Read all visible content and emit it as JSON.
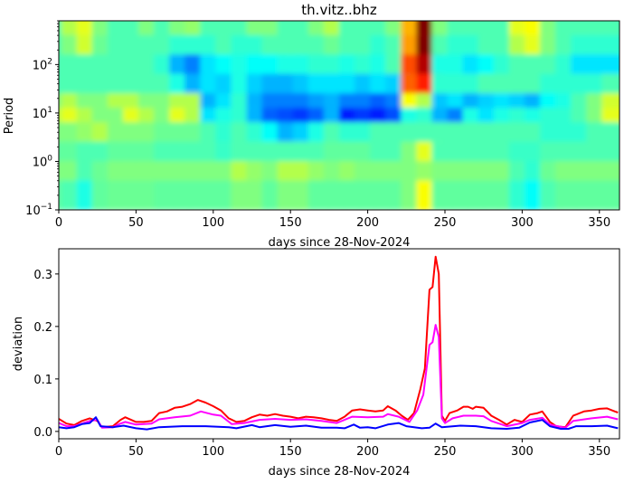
{
  "chart_data": [
    {
      "type": "heatmap",
      "title": "th.vitz..bhz",
      "xlabel": "days since 28-Nov-2024",
      "ylabel": "Period",
      "xlim": [
        0,
        363
      ],
      "ylim": [
        0.1,
        800
      ],
      "yscale": "log",
      "xticks": [
        "0",
        "50",
        "100",
        "150",
        "200",
        "250",
        "300",
        "350"
      ],
      "xtick_values": [
        0,
        50,
        100,
        150,
        200,
        250,
        300,
        350
      ],
      "yticks": [
        {
          "base": "10",
          "exp": "−1",
          "value": 0.1
        },
        {
          "base": "10",
          "exp": "0",
          "value": 1
        },
        {
          "base": "10",
          "exp": "1",
          "value": 10
        },
        {
          "base": "10",
          "exp": "2",
          "value": 100
        }
      ],
      "colormap": "jet",
      "x_bin_days": [
        0,
        10,
        20,
        30,
        40,
        50,
        60,
        70,
        80,
        90,
        100,
        110,
        120,
        130,
        140,
        150,
        160,
        170,
        180,
        190,
        200,
        210,
        220,
        230,
        240,
        250,
        260,
        270,
        280,
        290,
        300,
        310,
        320,
        330,
        340,
        350,
        360
      ],
      "log10_period_rows_top_to_bottom": [
        2.7,
        2.3,
        1.9,
        1.5,
        1.1,
        0.8,
        0.5,
        0.1,
        -0.3,
        -0.7
      ],
      "values": [
        [
          0.45,
          0.55,
          0.6,
          0.5,
          0.45,
          0.45,
          0.5,
          0.45,
          0.5,
          0.52,
          0.45,
          0.45,
          0.45,
          0.5,
          0.5,
          0.45,
          0.45,
          0.5,
          0.55,
          0.45,
          0.45,
          0.45,
          0.5,
          0.7,
          1.0,
          0.5,
          0.45,
          0.45,
          0.45,
          0.45,
          0.6,
          0.62,
          0.5,
          0.45,
          0.45,
          0.45,
          0.45
        ],
        [
          0.45,
          0.5,
          0.58,
          0.48,
          0.45,
          0.45,
          0.45,
          0.45,
          0.42,
          0.42,
          0.42,
          0.45,
          0.42,
          0.42,
          0.45,
          0.45,
          0.45,
          0.45,
          0.48,
          0.45,
          0.45,
          0.42,
          0.45,
          0.72,
          1.0,
          0.45,
          0.42,
          0.42,
          0.45,
          0.45,
          0.55,
          0.6,
          0.5,
          0.45,
          0.42,
          0.42,
          0.42
        ],
        [
          0.45,
          0.45,
          0.45,
          0.45,
          0.45,
          0.45,
          0.45,
          0.42,
          0.3,
          0.25,
          0.35,
          0.38,
          0.4,
          0.38,
          0.38,
          0.4,
          0.4,
          0.42,
          0.42,
          0.4,
          0.42,
          0.4,
          0.45,
          0.8,
          0.95,
          0.4,
          0.4,
          0.35,
          0.38,
          0.42,
          0.45,
          0.45,
          0.45,
          0.42,
          0.35,
          0.35,
          0.35
        ],
        [
          0.45,
          0.45,
          0.45,
          0.45,
          0.45,
          0.45,
          0.45,
          0.45,
          0.4,
          0.3,
          0.35,
          0.33,
          0.4,
          0.33,
          0.3,
          0.3,
          0.32,
          0.35,
          0.35,
          0.35,
          0.32,
          0.35,
          0.33,
          0.78,
          0.85,
          0.42,
          0.42,
          0.42,
          0.45,
          0.45,
          0.45,
          0.45,
          0.42,
          0.42,
          0.42,
          0.42,
          0.45
        ],
        [
          0.5,
          0.55,
          0.5,
          0.5,
          0.55,
          0.55,
          0.5,
          0.5,
          0.55,
          0.55,
          0.3,
          0.35,
          0.42,
          0.3,
          0.25,
          0.25,
          0.25,
          0.28,
          0.3,
          0.25,
          0.25,
          0.22,
          0.25,
          0.62,
          0.55,
          0.32,
          0.35,
          0.3,
          0.33,
          0.35,
          0.33,
          0.3,
          0.38,
          0.4,
          0.45,
          0.5,
          0.58
        ],
        [
          0.55,
          0.6,
          0.55,
          0.5,
          0.5,
          0.6,
          0.55,
          0.5,
          0.6,
          0.55,
          0.35,
          0.4,
          0.42,
          0.3,
          0.22,
          0.2,
          0.18,
          0.22,
          0.3,
          0.15,
          0.18,
          0.15,
          0.2,
          0.4,
          0.42,
          0.3,
          0.25,
          0.4,
          0.35,
          0.4,
          0.42,
          0.4,
          0.42,
          0.42,
          0.45,
          0.5,
          0.6
        ],
        [
          0.5,
          0.5,
          0.52,
          0.55,
          0.5,
          0.5,
          0.5,
          0.48,
          0.48,
          0.48,
          0.45,
          0.42,
          0.45,
          0.42,
          0.38,
          0.3,
          0.33,
          0.4,
          0.45,
          0.42,
          0.42,
          0.45,
          0.45,
          0.45,
          0.45,
          0.45,
          0.45,
          0.45,
          0.45,
          0.45,
          0.45,
          0.45,
          0.42,
          0.42,
          0.42,
          0.45,
          0.45
        ],
        [
          0.47,
          0.47,
          0.45,
          0.45,
          0.47,
          0.47,
          0.47,
          0.45,
          0.45,
          0.45,
          0.45,
          0.43,
          0.45,
          0.45,
          0.45,
          0.45,
          0.45,
          0.45,
          0.47,
          0.47,
          0.47,
          0.45,
          0.45,
          0.5,
          0.6,
          0.45,
          0.45,
          0.45,
          0.45,
          0.45,
          0.43,
          0.43,
          0.45,
          0.45,
          0.45,
          0.45,
          0.45
        ],
        [
          0.5,
          0.5,
          0.45,
          0.48,
          0.5,
          0.5,
          0.5,
          0.5,
          0.5,
          0.5,
          0.5,
          0.5,
          0.55,
          0.52,
          0.5,
          0.55,
          0.55,
          0.52,
          0.5,
          0.52,
          0.5,
          0.5,
          0.5,
          0.5,
          0.52,
          0.5,
          0.5,
          0.5,
          0.5,
          0.5,
          0.45,
          0.42,
          0.48,
          0.5,
          0.5,
          0.5,
          0.5
        ],
        [
          0.47,
          0.45,
          0.4,
          0.47,
          0.48,
          0.48,
          0.48,
          0.47,
          0.47,
          0.47,
          0.47,
          0.47,
          0.5,
          0.5,
          0.47,
          0.5,
          0.5,
          0.47,
          0.47,
          0.47,
          0.47,
          0.47,
          0.47,
          0.5,
          0.62,
          0.47,
          0.47,
          0.47,
          0.47,
          0.47,
          0.42,
          0.38,
          0.45,
          0.47,
          0.47,
          0.47,
          0.47
        ]
      ]
    },
    {
      "type": "line",
      "xlabel": "days since 28-Nov-2024",
      "ylabel": "deviation",
      "xlim": [
        0,
        363
      ],
      "ylim": [
        -0.014,
        0.348
      ],
      "xticks": [
        "0",
        "50",
        "100",
        "150",
        "200",
        "250",
        "300",
        "350"
      ],
      "xtick_values": [
        0,
        50,
        100,
        150,
        200,
        250,
        300,
        350
      ],
      "yticks": [
        "0.0",
        "0.1",
        "0.2",
        "0.3"
      ],
      "ytick_values": [
        0,
        0.1,
        0.2,
        0.3
      ],
      "series": [
        {
          "color": "#ff0000",
          "x": [
            0,
            5,
            10,
            15,
            20,
            25,
            28,
            35,
            40,
            43,
            50,
            55,
            60,
            65,
            70,
            75,
            80,
            85,
            90,
            95,
            100,
            105,
            110,
            115,
            120,
            125,
            130,
            135,
            140,
            145,
            150,
            155,
            160,
            165,
            170,
            175,
            180,
            185,
            190,
            195,
            200,
            205,
            210,
            213,
            218,
            222,
            226,
            230,
            234,
            237,
            240,
            242,
            244,
            246,
            248,
            250,
            253,
            258,
            262,
            265,
            268,
            270,
            275,
            280,
            285,
            290,
            295,
            300,
            305,
            310,
            313,
            318,
            322,
            328,
            333,
            340,
            345,
            350,
            355,
            360,
            362
          ],
          "y": [
            0.024,
            0.015,
            0.012,
            0.02,
            0.025,
            0.02,
            0.008,
            0.01,
            0.022,
            0.027,
            0.018,
            0.018,
            0.02,
            0.035,
            0.038,
            0.045,
            0.047,
            0.052,
            0.06,
            0.055,
            0.048,
            0.04,
            0.025,
            0.018,
            0.02,
            0.027,
            0.032,
            0.03,
            0.033,
            0.03,
            0.028,
            0.025,
            0.028,
            0.027,
            0.025,
            0.022,
            0.02,
            0.028,
            0.04,
            0.042,
            0.04,
            0.038,
            0.04,
            0.048,
            0.04,
            0.03,
            0.022,
            0.035,
            0.08,
            0.12,
            0.27,
            0.275,
            0.333,
            0.3,
            0.03,
            0.02,
            0.035,
            0.04,
            0.047,
            0.047,
            0.043,
            0.047,
            0.045,
            0.03,
            0.022,
            0.013,
            0.022,
            0.018,
            0.032,
            0.035,
            0.038,
            0.018,
            0.01,
            0.008,
            0.03,
            0.038,
            0.04,
            0.043,
            0.044,
            0.038,
            0.036
          ]
        },
        {
          "color": "#ff00ff",
          "x": [
            0,
            5,
            10,
            15,
            20,
            25,
            28,
            35,
            40,
            43,
            50,
            60,
            65,
            75,
            85,
            92,
            100,
            105,
            112,
            120,
            130,
            140,
            150,
            160,
            170,
            180,
            190,
            200,
            210,
            213,
            220,
            227,
            232,
            236,
            240,
            242,
            244,
            246,
            248,
            250,
            255,
            262,
            270,
            275,
            280,
            290,
            300,
            305,
            313,
            318,
            328,
            333,
            345,
            355,
            362
          ],
          "y": [
            0.016,
            0.01,
            0.01,
            0.015,
            0.02,
            0.022,
            0.007,
            0.008,
            0.015,
            0.018,
            0.013,
            0.015,
            0.023,
            0.027,
            0.03,
            0.038,
            0.032,
            0.03,
            0.014,
            0.016,
            0.022,
            0.024,
            0.022,
            0.023,
            0.02,
            0.016,
            0.028,
            0.027,
            0.028,
            0.033,
            0.028,
            0.018,
            0.04,
            0.07,
            0.165,
            0.17,
            0.203,
            0.18,
            0.025,
            0.016,
            0.025,
            0.03,
            0.03,
            0.029,
            0.02,
            0.01,
            0.016,
            0.022,
            0.026,
            0.013,
            0.007,
            0.02,
            0.025,
            0.028,
            0.023
          ]
        },
        {
          "color": "#0000ff",
          "x": [
            0,
            5,
            10,
            15,
            20,
            24,
            27,
            35,
            42,
            50,
            57,
            65,
            80,
            95,
            110,
            115,
            125,
            130,
            140,
            150,
            160,
            170,
            180,
            185,
            191,
            195,
            200,
            205,
            213,
            220,
            225,
            235,
            240,
            244,
            248,
            260,
            270,
            280,
            290,
            298,
            305,
            313,
            318,
            325,
            330,
            335,
            345,
            355,
            362
          ],
          "y": [
            0.008,
            0.006,
            0.008,
            0.014,
            0.016,
            0.027,
            0.01,
            0.008,
            0.011,
            0.006,
            0.004,
            0.008,
            0.01,
            0.01,
            0.008,
            0.006,
            0.012,
            0.008,
            0.012,
            0.009,
            0.011,
            0.007,
            0.007,
            0.006,
            0.013,
            0.007,
            0.008,
            0.006,
            0.013,
            0.016,
            0.01,
            0.006,
            0.007,
            0.015,
            0.008,
            0.011,
            0.01,
            0.006,
            0.005,
            0.007,
            0.017,
            0.022,
            0.01,
            0.005,
            0.005,
            0.01,
            0.01,
            0.011,
            0.006
          ]
        }
      ]
    }
  ]
}
